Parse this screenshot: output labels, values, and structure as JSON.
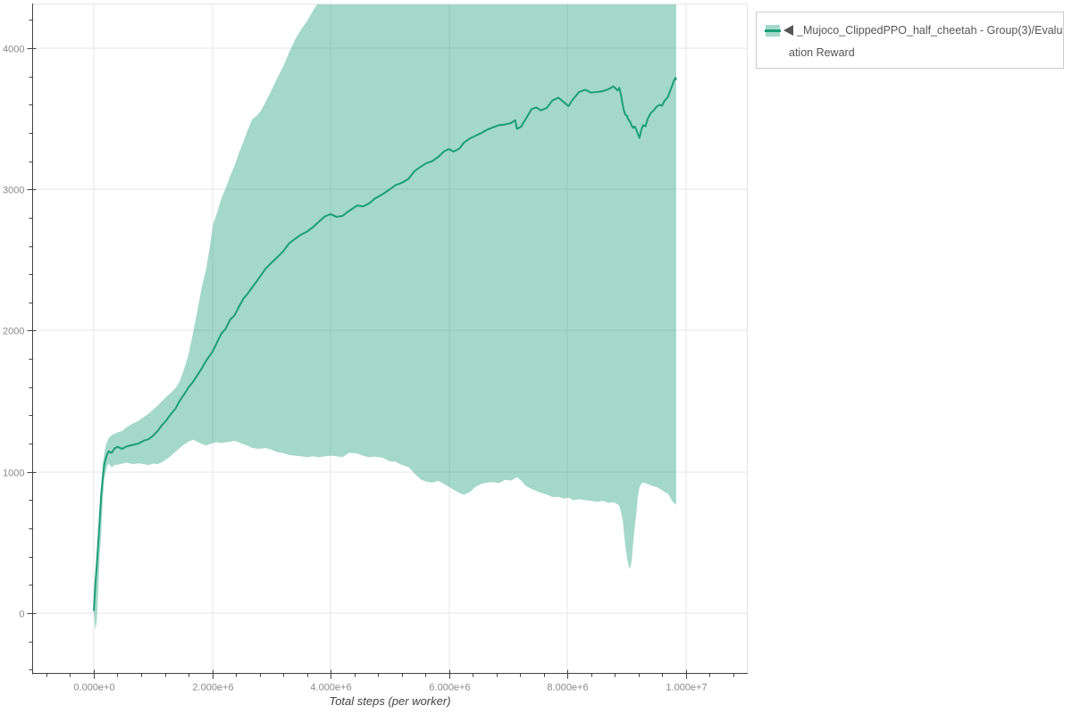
{
  "chart_data": {
    "type": "area",
    "title": "",
    "xlabel": "Total steps (per worker)",
    "ylabel": "",
    "x_axis": {
      "range": [
        -1041500,
        11049000
      ],
      "major_ticks": [
        {
          "value": 0,
          "label": "0.000e+0"
        },
        {
          "value": 2000000,
          "label": "2.000e+6"
        },
        {
          "value": 4000000,
          "label": "4.000e+6"
        },
        {
          "value": 6000000,
          "label": "6.000e+6"
        },
        {
          "value": 8000000,
          "label": "8.000e+6"
        },
        {
          "value": 10000000,
          "label": "1.000e+7"
        }
      ],
      "minor_step": 400000
    },
    "y_axis": {
      "range": [
        -430,
        4316
      ],
      "major_ticks": [
        {
          "value": 0,
          "label": "0"
        },
        {
          "value": 1000,
          "label": "1000"
        },
        {
          "value": 2000,
          "label": "2000"
        },
        {
          "value": 3000,
          "label": "3000"
        },
        {
          "value": 4000,
          "label": "4000"
        }
      ],
      "minor_step": 200
    },
    "grid": "major-only",
    "legend": {
      "position": "top-right",
      "marker_icon": "left-triangle",
      "label": "_Mujoco_ClippedPPO_half_cheetah - Group(3)/Evaluation Reward",
      "lines": [
        "_Mujoco_ClippedPPO_half_cheetah - Group(3)/Evalu",
        "ation Reward"
      ]
    },
    "series": [
      {
        "name": "Evaluation Reward",
        "line_color": "#1b9e77",
        "band_color": "rgba(27,158,119,0.4)",
        "points_format": [
          "steps",
          "mean",
          "lower",
          "upper"
        ],
        "points": [
          [
            0,
            15,
            15,
            15
          ],
          [
            26000,
            207,
            -120,
            300
          ],
          [
            50000,
            333,
            -60,
            430
          ],
          [
            75000,
            502,
            150,
            565
          ],
          [
            101000,
            671,
            420,
            700
          ],
          [
            125000,
            840,
            560,
            900
          ],
          [
            151000,
            956,
            797,
            1050
          ],
          [
            177000,
            1051,
            950,
            1130
          ],
          [
            201000,
            1093,
            1000,
            1180
          ],
          [
            226000,
            1125,
            1040,
            1215
          ],
          [
            252000,
            1146,
            1060,
            1240
          ],
          [
            302000,
            1135,
            1030,
            1260
          ],
          [
            352000,
            1167,
            1050,
            1270
          ],
          [
            403000,
            1177,
            1050,
            1280
          ],
          [
            480000,
            1163,
            1058,
            1290
          ],
          [
            550000,
            1180,
            1065,
            1315
          ],
          [
            650000,
            1190,
            1055,
            1340
          ],
          [
            750000,
            1200,
            1060,
            1360
          ],
          [
            850000,
            1222,
            1055,
            1390
          ],
          [
            920000,
            1230,
            1048,
            1410
          ],
          [
            1000000,
            1255,
            1058,
            1440
          ],
          [
            1080000,
            1290,
            1055,
            1470
          ],
          [
            1150000,
            1330,
            1068,
            1500
          ],
          [
            1220000,
            1362,
            1088,
            1530
          ],
          [
            1300000,
            1408,
            1112,
            1560
          ],
          [
            1380000,
            1448,
            1142,
            1592
          ],
          [
            1450000,
            1502,
            1168,
            1640
          ],
          [
            1520000,
            1545,
            1192,
            1720
          ],
          [
            1600000,
            1598,
            1214,
            1830
          ],
          [
            1680000,
            1640,
            1228,
            1990
          ],
          [
            1750000,
            1685,
            1214,
            2140
          ],
          [
            1820000,
            1730,
            1198,
            2300
          ],
          [
            1900000,
            1788,
            1188,
            2440
          ],
          [
            1970000,
            1830,
            1198,
            2620
          ],
          [
            2020000,
            1862,
            1205,
            2760
          ],
          [
            2080000,
            1915,
            1210,
            2830
          ],
          [
            2150000,
            1975,
            1204,
            2930
          ],
          [
            2230000,
            2015,
            1210,
            3010
          ],
          [
            2300000,
            2075,
            1214,
            3090
          ],
          [
            2380000,
            2110,
            1220,
            3170
          ],
          [
            2450000,
            2168,
            1210,
            3255
          ],
          [
            2530000,
            2228,
            1195,
            3340
          ],
          [
            2600000,
            2262,
            1185,
            3420
          ],
          [
            2680000,
            2308,
            1170,
            3500
          ],
          [
            2750000,
            2348,
            1164,
            3520
          ],
          [
            2830000,
            2395,
            1164,
            3560
          ],
          [
            2900000,
            2438,
            1170,
            3618
          ],
          [
            3000000,
            2480,
            1158,
            3700
          ],
          [
            3100000,
            2520,
            1140,
            3790
          ],
          [
            3200000,
            2562,
            1134,
            3870
          ],
          [
            3300000,
            2618,
            1120,
            3970
          ],
          [
            3400000,
            2650,
            1114,
            4060
          ],
          [
            3500000,
            2680,
            1110,
            4130
          ],
          [
            3600000,
            2700,
            1104,
            4190
          ],
          [
            3700000,
            2732,
            1110,
            4262
          ],
          [
            3800000,
            2770,
            1104,
            4330
          ],
          [
            3900000,
            2808,
            1110,
            4420
          ],
          [
            4000000,
            2825,
            1114,
            4500
          ],
          [
            4100000,
            2806,
            1110,
            4500
          ],
          [
            4200000,
            2812,
            1104,
            4500
          ],
          [
            4320000,
            2850,
            1136,
            4500
          ],
          [
            4450000,
            2886,
            1130,
            4500
          ],
          [
            4550000,
            2880,
            1114,
            4500
          ],
          [
            4650000,
            2900,
            1104,
            4500
          ],
          [
            4750000,
            2936,
            1108,
            4500
          ],
          [
            4880000,
            2966,
            1100,
            4500
          ],
          [
            5000000,
            3000,
            1076,
            4500
          ],
          [
            5100000,
            3030,
            1072,
            4500
          ],
          [
            5200000,
            3046,
            1050,
            4500
          ],
          [
            5320000,
            3076,
            1034,
            4500
          ],
          [
            5420000,
            3130,
            988,
            4500
          ],
          [
            5520000,
            3160,
            948,
            4500
          ],
          [
            5620000,
            3186,
            930,
            4500
          ],
          [
            5720000,
            3200,
            924,
            4500
          ],
          [
            5820000,
            3230,
            936,
            4500
          ],
          [
            5920000,
            3270,
            914,
            4500
          ],
          [
            6000000,
            3286,
            894,
            4500
          ],
          [
            6080000,
            3268,
            874,
            4500
          ],
          [
            6180000,
            3290,
            850,
            4500
          ],
          [
            6250000,
            3330,
            838,
            4500
          ],
          [
            6350000,
            3360,
            856,
            4500
          ],
          [
            6450000,
            3380,
            894,
            4500
          ],
          [
            6550000,
            3400,
            916,
            4500
          ],
          [
            6650000,
            3424,
            924,
            4500
          ],
          [
            6750000,
            3440,
            928,
            4500
          ],
          [
            6850000,
            3455,
            920,
            4500
          ],
          [
            6950000,
            3460,
            944,
            4500
          ],
          [
            7050000,
            3470,
            938,
            4500
          ],
          [
            7120000,
            3490,
            955,
            4500
          ],
          [
            7150000,
            3428,
            962,
            4500
          ],
          [
            7220000,
            3445,
            940,
            4500
          ],
          [
            7300000,
            3500,
            900,
            4500
          ],
          [
            7400000,
            3570,
            878,
            4500
          ],
          [
            7480000,
            3580,
            864,
            4500
          ],
          [
            7550000,
            3560,
            852,
            4500
          ],
          [
            7650000,
            3576,
            840,
            4500
          ],
          [
            7750000,
            3630,
            822,
            4500
          ],
          [
            7850000,
            3650,
            822,
            4500
          ],
          [
            7950000,
            3615,
            810,
            4500
          ],
          [
            8020000,
            3590,
            818,
            4500
          ],
          [
            8100000,
            3640,
            800,
            4500
          ],
          [
            8200000,
            3690,
            806,
            4500
          ],
          [
            8300000,
            3706,
            800,
            4500
          ],
          [
            8400000,
            3686,
            795,
            4500
          ],
          [
            8500000,
            3690,
            787,
            4500
          ],
          [
            8600000,
            3696,
            795,
            4500
          ],
          [
            8700000,
            3710,
            780,
            4500
          ],
          [
            8780000,
            3730,
            786,
            4500
          ],
          [
            8850000,
            3700,
            770,
            4500
          ],
          [
            8880000,
            3720,
            758,
            4500
          ],
          [
            8910000,
            3665,
            713,
            4500
          ],
          [
            8940000,
            3590,
            650,
            4500
          ],
          [
            8960000,
            3555,
            560,
            4500
          ],
          [
            8980000,
            3530,
            480,
            4500
          ],
          [
            9010000,
            3520,
            395,
            4500
          ],
          [
            9030000,
            3496,
            345,
            4500
          ],
          [
            9060000,
            3480,
            310,
            4500
          ],
          [
            9090000,
            3450,
            375,
            4500
          ],
          [
            9110000,
            3436,
            480,
            4500
          ],
          [
            9140000,
            3446,
            610,
            4500
          ],
          [
            9170000,
            3420,
            715,
            4500
          ],
          [
            9190000,
            3396,
            820,
            4500
          ],
          [
            9220000,
            3365,
            893,
            4500
          ],
          [
            9250000,
            3420,
            915,
            4500
          ],
          [
            9280000,
            3455,
            925,
            4500
          ],
          [
            9320000,
            3446,
            920,
            4500
          ],
          [
            9360000,
            3500,
            914,
            4500
          ],
          [
            9410000,
            3540,
            905,
            4500
          ],
          [
            9460000,
            3560,
            898,
            4500
          ],
          [
            9510000,
            3585,
            893,
            4500
          ],
          [
            9560000,
            3600,
            880,
            4500
          ],
          [
            9600000,
            3592,
            872,
            4500
          ],
          [
            9640000,
            3625,
            858,
            4500
          ],
          [
            9700000,
            3655,
            845,
            4500
          ],
          [
            9740000,
            3700,
            820,
            4500
          ],
          [
            9770000,
            3732,
            795,
            4500
          ],
          [
            9800000,
            3768,
            780,
            4500
          ],
          [
            9830000,
            3790,
            772,
            4500
          ],
          [
            9840000,
            3775,
            766,
            4500
          ]
        ]
      }
    ]
  },
  "colors": {
    "background": "#ffffff",
    "plot_background": "#ffffff",
    "grid": "#e6e6e6",
    "plot_border": "#e6e6e6",
    "axis_line": "#444444",
    "tick_label": "#898989",
    "axis_title": "#444444",
    "legend_border": "#cccccc",
    "legend_text": "#555555"
  }
}
